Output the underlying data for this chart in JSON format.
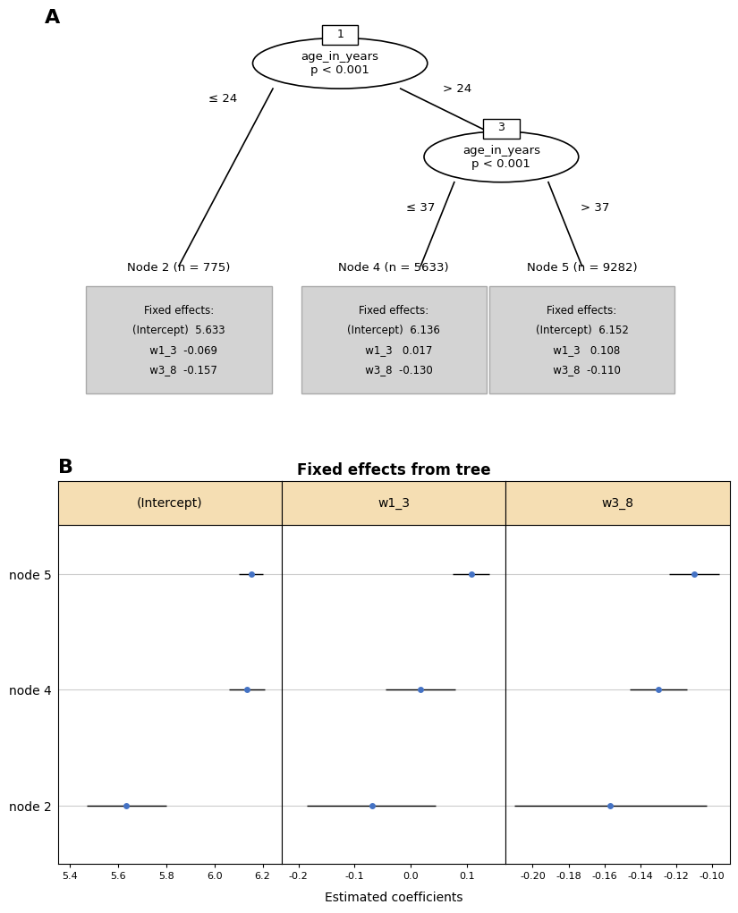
{
  "panel_A_label": "A",
  "panel_B_label": "B",
  "nodes": [
    {
      "title": "Node 2 (n = 775)",
      "lines": [
        "Fixed effects:",
        "(Intercept)  5.633",
        "   w1_3  -0.069",
        "   w3_8  -0.157"
      ]
    },
    {
      "title": "Node 4 (n = 5633)",
      "lines": [
        "Fixed effects:",
        "(Intercept)  6.136",
        "   w1_3   0.017",
        "   w3_8  -0.130"
      ]
    },
    {
      "title": "Node 5 (n = 9282)",
      "lines": [
        "Fixed effects:",
        "(Intercept)  6.152",
        "   w1_3   0.108",
        "   w3_8  -0.110"
      ]
    }
  ],
  "box_bg_color": "#d3d3d3",
  "plot_B": {
    "title": "Fixed effects from tree",
    "xlabel": "Estimated coefficients",
    "panels": [
      "(Intercept)",
      "w1_3",
      "w3_8"
    ],
    "nodes": [
      "node 5",
      "node 4",
      "node 2"
    ],
    "header_bg": "#f5deb3",
    "dot_color": "#4472c4",
    "intercept": {
      "xlim": [
        5.35,
        6.28
      ],
      "xticks": [
        5.4,
        5.6,
        5.8,
        6.0,
        6.2
      ],
      "xticklabels": [
        "5.4",
        "5.6",
        "5.8",
        "6.0",
        "6.2"
      ],
      "points": [
        6.152,
        6.136,
        5.633
      ],
      "ci_low": [
        6.1,
        6.06,
        5.47
      ],
      "ci_high": [
        6.2,
        6.21,
        5.8
      ]
    },
    "w1_3": {
      "xlim": [
        -0.23,
        0.17
      ],
      "xticks": [
        -0.2,
        -0.1,
        0.0,
        0.1
      ],
      "xticklabels": [
        "-0.2",
        "-0.1",
        "0.0",
        "0.1"
      ],
      "points": [
        0.108,
        0.017,
        -0.069
      ],
      "ci_low": [
        0.075,
        -0.045,
        -0.185
      ],
      "ci_high": [
        0.14,
        0.08,
        0.045
      ]
    },
    "w3_8": {
      "xlim": [
        -0.215,
        -0.09
      ],
      "xticks": [
        -0.2,
        -0.18,
        -0.16,
        -0.14,
        -0.12,
        -0.1
      ],
      "xticklabels": [
        "-0.20",
        "-0.18",
        "-0.16",
        "-0.14",
        "-0.12",
        "-0.10"
      ],
      "points": [
        -0.11,
        -0.13,
        -0.157
      ],
      "ci_low": [
        -0.124,
        -0.146,
        -0.21
      ],
      "ci_high": [
        -0.096,
        -0.114,
        -0.103
      ]
    }
  }
}
